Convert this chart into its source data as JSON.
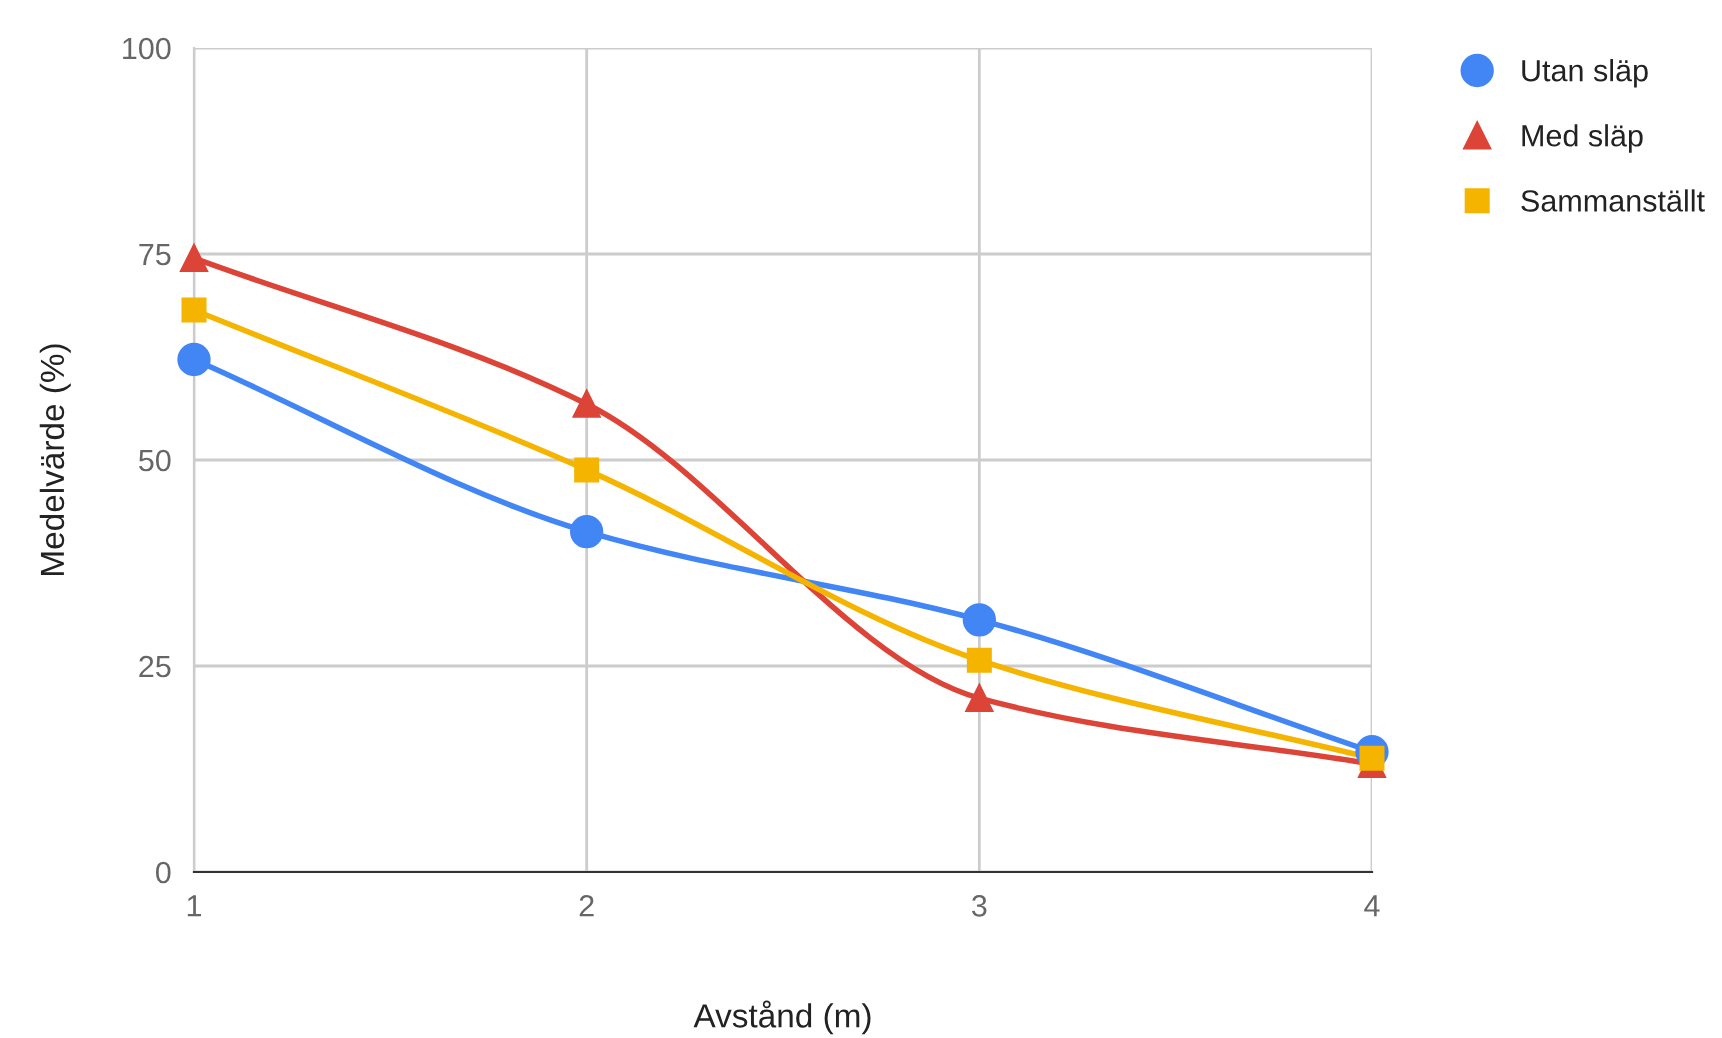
{
  "chart_data": {
    "type": "line",
    "xlabel": "Avstånd (m)",
    "ylabel": "Medelvärde (%)",
    "x": [
      1,
      2,
      3,
      4
    ],
    "xlim": [
      1,
      4
    ],
    "xticks": [
      1,
      2,
      3,
      4
    ],
    "ylim": [
      0,
      100
    ],
    "yticks": [
      0,
      25,
      50,
      75,
      100
    ],
    "grid": true,
    "legend": "top right",
    "series": [
      {
        "name": "Utan släp",
        "color": "#4285f4",
        "marker": "circle",
        "values": [
          62.2,
          41.3,
          30.6,
          14.6
        ]
      },
      {
        "name": "Med släp",
        "color": "#db4437",
        "marker": "triangle",
        "values": [
          74.5,
          56.8,
          21.1,
          13.1
        ]
      },
      {
        "name": "Sammanställt",
        "color": "#f4b400",
        "marker": "square",
        "values": [
          68.2,
          48.8,
          25.7,
          13.8
        ]
      }
    ]
  }
}
